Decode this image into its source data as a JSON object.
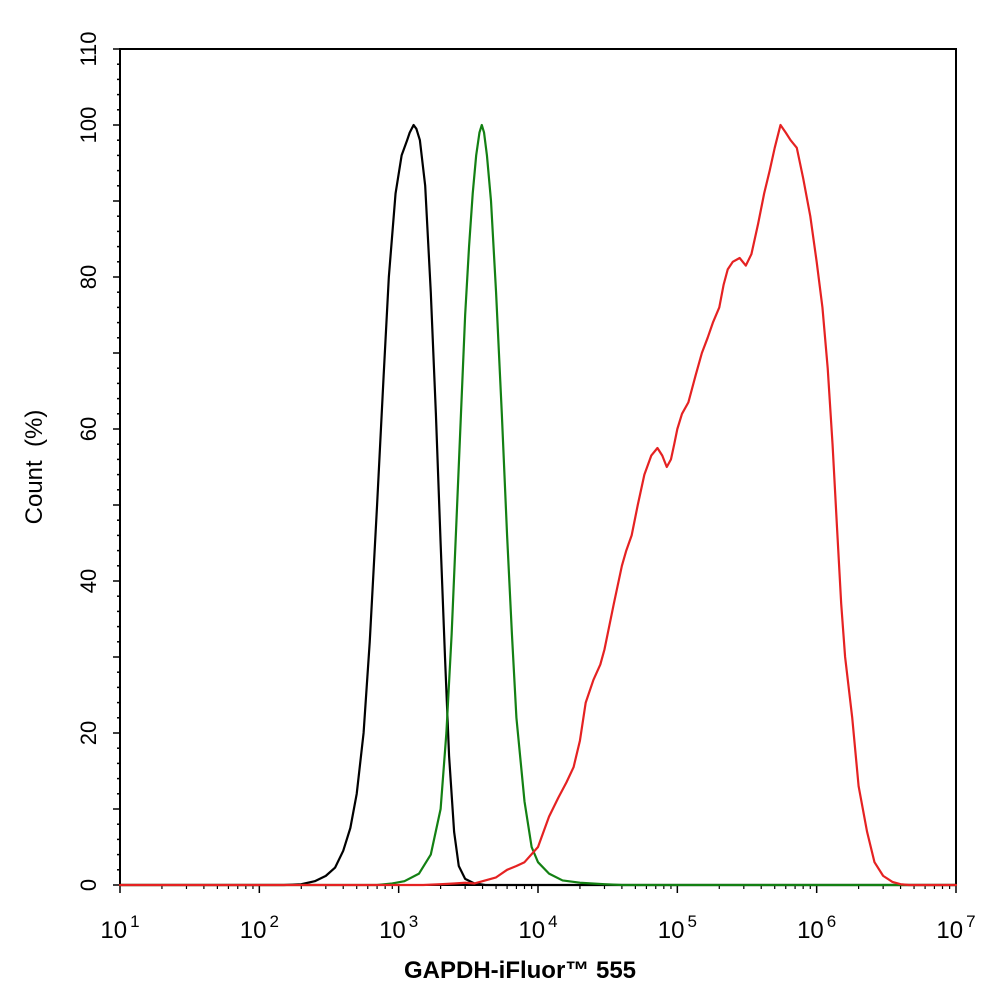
{
  "chart_data": {
    "type": "line",
    "xlabel": "GAPDH-iFluor™ 555",
    "ylabel": "Count  (%)",
    "x_scale": "log",
    "xlim": [
      10,
      10000000
    ],
    "ylim": [
      0,
      110
    ],
    "x_ticks": [
      {
        "value": 10,
        "base": "10",
        "exp": "1"
      },
      {
        "value": 100,
        "base": "10",
        "exp": "2"
      },
      {
        "value": 1000,
        "base": "10",
        "exp": "3"
      },
      {
        "value": 10000,
        "base": "10",
        "exp": "4"
      },
      {
        "value": 100000,
        "base": "10",
        "exp": "5"
      },
      {
        "value": 1000000,
        "base": "10",
        "exp": "6"
      },
      {
        "value": 10000000,
        "base": "10",
        "exp": "7"
      }
    ],
    "y_ticks": [
      "0",
      "20",
      "40",
      "60",
      "80",
      "100",
      "110"
    ],
    "grid": false,
    "series": [
      {
        "color": "#000000",
        "points": [
          [
            10,
            0
          ],
          [
            150,
            0
          ],
          [
            200,
            0.1
          ],
          [
            250,
            0.5
          ],
          [
            300,
            1.2
          ],
          [
            350,
            2.3
          ],
          [
            400,
            4.5
          ],
          [
            450,
            7.5
          ],
          [
            500,
            12
          ],
          [
            560,
            20
          ],
          [
            620,
            32
          ],
          [
            700,
            50
          ],
          [
            780,
            67
          ],
          [
            850,
            80
          ],
          [
            950,
            91
          ],
          [
            1050,
            96
          ],
          [
            1150,
            98
          ],
          [
            1200,
            99
          ],
          [
            1280,
            100
          ],
          [
            1340,
            99.5
          ],
          [
            1420,
            98
          ],
          [
            1550,
            92
          ],
          [
            1700,
            78
          ],
          [
            1850,
            62
          ],
          [
            2000,
            45
          ],
          [
            2150,
            30
          ],
          [
            2300,
            17
          ],
          [
            2500,
            7
          ],
          [
            2700,
            2.5
          ],
          [
            3000,
            0.8
          ],
          [
            3500,
            0.2
          ],
          [
            4200,
            0
          ],
          [
            10000000,
            0
          ]
        ]
      },
      {
        "color": "#138013",
        "points": [
          [
            10,
            0
          ],
          [
            700,
            0
          ],
          [
            900,
            0.2
          ],
          [
            1100,
            0.5
          ],
          [
            1400,
            1.5
          ],
          [
            1700,
            4
          ],
          [
            2000,
            10
          ],
          [
            2200,
            20
          ],
          [
            2400,
            33
          ],
          [
            2600,
            48
          ],
          [
            2800,
            62
          ],
          [
            3000,
            75
          ],
          [
            3200,
            84
          ],
          [
            3400,
            91
          ],
          [
            3600,
            96
          ],
          [
            3800,
            99
          ],
          [
            3950,
            100
          ],
          [
            4100,
            99
          ],
          [
            4300,
            96
          ],
          [
            4600,
            90
          ],
          [
            5000,
            78
          ],
          [
            5500,
            62
          ],
          [
            6000,
            46
          ],
          [
            6500,
            33
          ],
          [
            7000,
            22
          ],
          [
            8000,
            11
          ],
          [
            9000,
            5
          ],
          [
            10000,
            3
          ],
          [
            12000,
            1.5
          ],
          [
            15000,
            0.6
          ],
          [
            20000,
            0.3
          ],
          [
            30000,
            0.1
          ],
          [
            40000,
            0
          ],
          [
            10000000,
            0
          ]
        ]
      },
      {
        "color": "#e52222",
        "points": [
          [
            10,
            0
          ],
          [
            1500,
            0
          ],
          [
            2000,
            0.1
          ],
          [
            2500,
            0.2
          ],
          [
            3000,
            0.3
          ],
          [
            3500,
            0.2
          ],
          [
            4000,
            0.5
          ],
          [
            5000,
            1
          ],
          [
            6000,
            2
          ],
          [
            7000,
            2.5
          ],
          [
            8000,
            3
          ],
          [
            10000,
            5
          ],
          [
            12000,
            9
          ],
          [
            14000,
            11.5
          ],
          [
            16000,
            13.5
          ],
          [
            18000,
            15.5
          ],
          [
            20000,
            19
          ],
          [
            22000,
            24
          ],
          [
            25000,
            27
          ],
          [
            28000,
            29
          ],
          [
            30000,
            31
          ],
          [
            35000,
            37
          ],
          [
            40000,
            42
          ],
          [
            43000,
            44
          ],
          [
            47000,
            46
          ],
          [
            52000,
            50
          ],
          [
            58000,
            54
          ],
          [
            65000,
            56.5
          ],
          [
            72000,
            57.5
          ],
          [
            78000,
            56.5
          ],
          [
            84000,
            55
          ],
          [
            90000,
            56
          ],
          [
            95000,
            58
          ],
          [
            100000,
            60
          ],
          [
            108000,
            62
          ],
          [
            120000,
            63.5
          ],
          [
            135000,
            67
          ],
          [
            150000,
            70
          ],
          [
            165000,
            72
          ],
          [
            180000,
            74
          ],
          [
            200000,
            76
          ],
          [
            215000,
            79
          ],
          [
            230000,
            81
          ],
          [
            250000,
            82
          ],
          [
            280000,
            82.5
          ],
          [
            310000,
            81.5
          ],
          [
            340000,
            83
          ],
          [
            380000,
            87
          ],
          [
            420000,
            91
          ],
          [
            460000,
            94
          ],
          [
            500000,
            97
          ],
          [
            550000,
            100
          ],
          [
            600000,
            99
          ],
          [
            650000,
            98
          ],
          [
            720000,
            97
          ],
          [
            800000,
            93
          ],
          [
            900000,
            88
          ],
          [
            1000000,
            82
          ],
          [
            1100000,
            76
          ],
          [
            1200000,
            68
          ],
          [
            1300000,
            58
          ],
          [
            1400000,
            47
          ],
          [
            1500000,
            37
          ],
          [
            1600000,
            30
          ],
          [
            1800000,
            22
          ],
          [
            2000000,
            13
          ],
          [
            2300000,
            7
          ],
          [
            2600000,
            3
          ],
          [
            3000000,
            1.2
          ],
          [
            3500000,
            0.4
          ],
          [
            4000000,
            0.1
          ],
          [
            4600000,
            0
          ],
          [
            10000000,
            0
          ]
        ]
      }
    ]
  }
}
